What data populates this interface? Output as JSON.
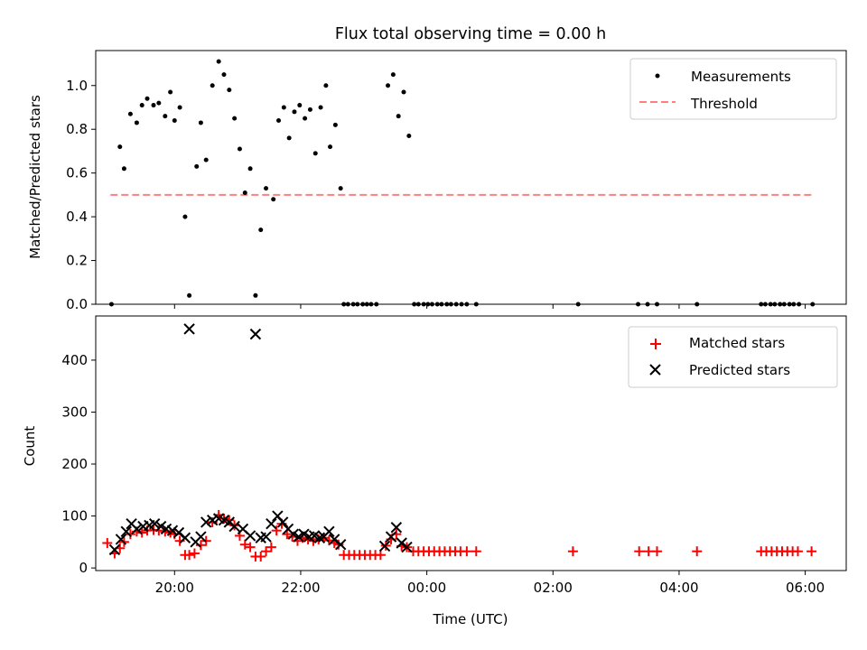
{
  "figure": {
    "title": "Flux total observing time = 0.00 h"
  },
  "chart_data": [
    {
      "type": "scatter",
      "ylabel": "Matched/Predicted stars",
      "xlabel": "",
      "ylim": [
        0.0,
        1.16
      ],
      "yticks": [
        "0.0",
        "0.2",
        "0.4",
        "0.6",
        "0.8",
        "1.0"
      ],
      "ytick_values": [
        0.0,
        0.2,
        0.4,
        0.6,
        0.8,
        1.0
      ],
      "legend_position": "upper-right",
      "colors": {
        "measurements": "#000000",
        "threshold": "#ff7f7f"
      },
      "series": [
        {
          "name": "Measurements",
          "points": [
            [
              "19:00",
              0.0
            ],
            [
              "19:08",
              0.72
            ],
            [
              "19:12",
              0.62
            ],
            [
              "19:18",
              0.87
            ],
            [
              "19:24",
              0.83
            ],
            [
              "19:29",
              0.91
            ],
            [
              "19:34",
              0.94
            ],
            [
              "19:40",
              0.91
            ],
            [
              "19:45",
              0.92
            ],
            [
              "19:51",
              0.86
            ],
            [
              "19:56",
              0.97
            ],
            [
              "20:00",
              0.84
            ],
            [
              "20:05",
              0.9
            ],
            [
              "20:10",
              0.4
            ],
            [
              "20:14",
              0.04
            ],
            [
              "20:21",
              0.63
            ],
            [
              "20:25",
              0.83
            ],
            [
              "20:30",
              0.66
            ],
            [
              "20:36",
              1.0
            ],
            [
              "20:42",
              1.11
            ],
            [
              "20:47",
              1.05
            ],
            [
              "20:52",
              0.98
            ],
            [
              "20:57",
              0.85
            ],
            [
              "21:02",
              0.71
            ],
            [
              "21:07",
              0.51
            ],
            [
              "21:12",
              0.62
            ],
            [
              "21:17",
              0.04
            ],
            [
              "21:22",
              0.34
            ],
            [
              "21:27",
              0.53
            ],
            [
              "21:34",
              0.48
            ],
            [
              "21:39",
              0.84
            ],
            [
              "21:44",
              0.9
            ],
            [
              "21:49",
              0.76
            ],
            [
              "21:54",
              0.88
            ],
            [
              "21:59",
              0.91
            ],
            [
              "22:04",
              0.85
            ],
            [
              "22:09",
              0.89
            ],
            [
              "22:14",
              0.69
            ],
            [
              "22:19",
              0.9
            ],
            [
              "22:24",
              1.0
            ],
            [
              "22:28",
              0.72
            ],
            [
              "22:33",
              0.82
            ],
            [
              "22:38",
              0.53
            ],
            [
              "22:41",
              0.0
            ],
            [
              "22:45",
              0.0
            ],
            [
              "22:50",
              0.0
            ],
            [
              "22:54",
              0.0
            ],
            [
              "22:59",
              0.0
            ],
            [
              "23:03",
              0.0
            ],
            [
              "23:07",
              0.0
            ],
            [
              "23:12",
              0.0
            ],
            [
              "23:23",
              1.0
            ],
            [
              "23:28",
              1.05
            ],
            [
              "23:33",
              0.86
            ],
            [
              "23:38",
              0.97
            ],
            [
              "23:43",
              0.77
            ],
            [
              "23:48",
              0.0
            ],
            [
              "23:52",
              0.0
            ],
            [
              "23:57",
              0.0
            ],
            [
              "00:01",
              0.0
            ],
            [
              "00:05",
              0.0
            ],
            [
              "00:10",
              0.0
            ],
            [
              "00:14",
              0.0
            ],
            [
              "00:19",
              0.0
            ],
            [
              "00:23",
              0.0
            ],
            [
              "00:28",
              0.0
            ],
            [
              "00:33",
              0.0
            ],
            [
              "00:38",
              0.0
            ],
            [
              "00:47",
              0.0
            ],
            [
              "02:24",
              0.0
            ],
            [
              "03:21",
              0.0
            ],
            [
              "03:30",
              0.0
            ],
            [
              "03:39",
              0.0
            ],
            [
              "04:17",
              0.0
            ],
            [
              "05:18",
              0.0
            ],
            [
              "05:22",
              0.0
            ],
            [
              "05:27",
              0.0
            ],
            [
              "05:31",
              0.0
            ],
            [
              "05:36",
              0.0
            ],
            [
              "05:40",
              0.0
            ],
            [
              "05:45",
              0.0
            ],
            [
              "05:49",
              0.0
            ],
            [
              "05:54",
              0.0
            ],
            [
              "06:07",
              0.0
            ]
          ]
        },
        {
          "name": "Threshold",
          "style": "dashed",
          "x": [
            "18:59",
            "06:07"
          ],
          "y": [
            0.5,
            0.5
          ]
        }
      ]
    },
    {
      "type": "scatter",
      "ylabel": "Count",
      "xlabel": "Time (UTC)",
      "ylim": [
        -5,
        485
      ],
      "yticks": [
        "0",
        "100",
        "200",
        "300",
        "400"
      ],
      "ytick_values": [
        0,
        100,
        200,
        300,
        400
      ],
      "xlim": [
        "18:45",
        "06:39"
      ],
      "xticks": [
        "20:00",
        "22:00",
        "00:00",
        "02:00",
        "04:00",
        "06:00"
      ],
      "legend_position": "upper-right",
      "colors": {
        "matched": "#ff0000",
        "predicted": "#000000"
      },
      "series": [
        {
          "name": "Matched stars",
          "marker": "plus",
          "points": [
            [
              "18:56",
              48
            ],
            [
              "19:03",
              28
            ],
            [
              "19:08",
              38
            ],
            [
              "19:12",
              50
            ],
            [
              "19:18",
              65
            ],
            [
              "19:24",
              70
            ],
            [
              "19:29",
              68
            ],
            [
              "19:34",
              72
            ],
            [
              "19:40",
              73
            ],
            [
              "19:45",
              72
            ],
            [
              "19:51",
              70
            ],
            [
              "19:56",
              68
            ],
            [
              "20:00",
              65
            ],
            [
              "20:05",
              52
            ],
            [
              "20:10",
              25
            ],
            [
              "20:14",
              25
            ],
            [
              "20:19",
              28
            ],
            [
              "20:25",
              44
            ],
            [
              "20:30",
              52
            ],
            [
              "20:36",
              88
            ],
            [
              "20:42",
              102
            ],
            [
              "20:47",
              95
            ],
            [
              "20:52",
              92
            ],
            [
              "20:57",
              82
            ],
            [
              "21:02",
              62
            ],
            [
              "21:07",
              45
            ],
            [
              "21:12",
              40
            ],
            [
              "21:17",
              22
            ],
            [
              "21:22",
              22
            ],
            [
              "21:27",
              32
            ],
            [
              "21:32",
              40
            ],
            [
              "21:37",
              72
            ],
            [
              "21:42",
              85
            ],
            [
              "21:47",
              65
            ],
            [
              "21:52",
              60
            ],
            [
              "21:57",
              52
            ],
            [
              "22:02",
              58
            ],
            [
              "22:07",
              55
            ],
            [
              "22:12",
              52
            ],
            [
              "22:17",
              55
            ],
            [
              "22:22",
              58
            ],
            [
              "22:27",
              53
            ],
            [
              "22:32",
              48
            ],
            [
              "22:36",
              45
            ],
            [
              "22:41",
              25
            ],
            [
              "22:46",
              25
            ],
            [
              "22:51",
              25
            ],
            [
              "22:56",
              25
            ],
            [
              "23:01",
              25
            ],
            [
              "23:06",
              25
            ],
            [
              "23:11",
              25
            ],
            [
              "23:16",
              25
            ],
            [
              "23:21",
              43
            ],
            [
              "23:26",
              55
            ],
            [
              "23:31",
              65
            ],
            [
              "23:36",
              42
            ],
            [
              "23:41",
              40
            ],
            [
              "23:47",
              32
            ],
            [
              "23:52",
              32
            ],
            [
              "23:57",
              32
            ],
            [
              "00:02",
              32
            ],
            [
              "00:07",
              32
            ],
            [
              "00:12",
              32
            ],
            [
              "00:17",
              32
            ],
            [
              "00:22",
              32
            ],
            [
              "00:27",
              32
            ],
            [
              "00:32",
              32
            ],
            [
              "00:38",
              32
            ],
            [
              "00:47",
              32
            ],
            [
              "02:19",
              32
            ],
            [
              "03:22",
              32
            ],
            [
              "03:31",
              32
            ],
            [
              "03:39",
              32
            ],
            [
              "04:17",
              32
            ],
            [
              "05:18",
              32
            ],
            [
              "05:23",
              32
            ],
            [
              "05:28",
              32
            ],
            [
              "05:33",
              32
            ],
            [
              "05:38",
              32
            ],
            [
              "05:43",
              32
            ],
            [
              "05:48",
              32
            ],
            [
              "05:53",
              32
            ],
            [
              "06:06",
              32
            ]
          ]
        },
        {
          "name": "Predicted stars",
          "marker": "x",
          "points": [
            [
              "19:03",
              35
            ],
            [
              "19:09",
              55
            ],
            [
              "19:14",
              70
            ],
            [
              "19:19",
              85
            ],
            [
              "19:24",
              75
            ],
            [
              "19:30",
              80
            ],
            [
              "19:36",
              82
            ],
            [
              "19:41",
              85
            ],
            [
              "19:47",
              80
            ],
            [
              "19:52",
              75
            ],
            [
              "19:58",
              72
            ],
            [
              "20:04",
              68
            ],
            [
              "20:10",
              58
            ],
            [
              "20:14",
              460
            ],
            [
              "20:20",
              50
            ],
            [
              "20:25",
              60
            ],
            [
              "20:30",
              88
            ],
            [
              "20:36",
              92
            ],
            [
              "20:42",
              95
            ],
            [
              "20:47",
              92
            ],
            [
              "20:52",
              88
            ],
            [
              "20:57",
              80
            ],
            [
              "21:05",
              75
            ],
            [
              "21:12",
              62
            ],
            [
              "21:17",
              450
            ],
            [
              "21:22",
              58
            ],
            [
              "21:27",
              60
            ],
            [
              "21:32",
              85
            ],
            [
              "21:38",
              100
            ],
            [
              "21:43",
              88
            ],
            [
              "21:48",
              75
            ],
            [
              "21:53",
              65
            ],
            [
              "21:58",
              60
            ],
            [
              "22:03",
              65
            ],
            [
              "22:08",
              60
            ],
            [
              "22:13",
              62
            ],
            [
              "22:18",
              58
            ],
            [
              "22:22",
              60
            ],
            [
              "22:27",
              70
            ],
            [
              "22:32",
              55
            ],
            [
              "22:38",
              45
            ],
            [
              "23:20",
              42
            ],
            [
              "23:26",
              60
            ],
            [
              "23:31",
              78
            ],
            [
              "23:36",
              48
            ],
            [
              "23:41",
              40
            ]
          ]
        }
      ]
    }
  ]
}
